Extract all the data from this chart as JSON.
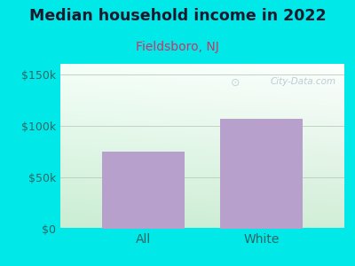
{
  "title": "Median household income in 2022",
  "subtitle": "Fieldsboro, NJ",
  "categories": [
    "All",
    "White"
  ],
  "values": [
    75000,
    107000
  ],
  "bar_color": "#b8a0cc",
  "background_color": "#00e8e8",
  "yticks": [
    0,
    50000,
    100000,
    150000
  ],
  "ylabels": [
    "$0",
    "$50k",
    "$100k",
    "$150k"
  ],
  "ylim": [
    0,
    160000
  ],
  "title_color": "#1a1a2e",
  "subtitle_color": "#cc3366",
  "tick_color": "#2a6666",
  "watermark": "City-Data.com"
}
